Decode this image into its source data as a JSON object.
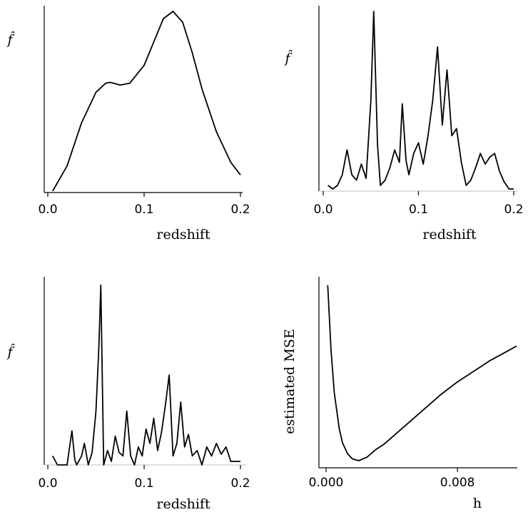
{
  "chart_data": [
    {
      "type": "line",
      "panel": "top-left",
      "xlabel": "redshift",
      "ylabel": "f̂",
      "xticks": [
        "0.0",
        "0.1",
        "0.2"
      ],
      "xlim": [
        0.0,
        0.2
      ],
      "ylim": [
        0,
        1
      ],
      "series": [
        {
          "x": [
            0.005,
            0.02,
            0.035,
            0.05,
            0.06,
            0.065,
            0.075,
            0.085,
            0.1,
            0.11,
            0.12,
            0.13,
            0.14,
            0.15,
            0.16,
            0.175,
            0.19,
            0.2
          ],
          "y": [
            0.0,
            0.14,
            0.38,
            0.55,
            0.6,
            0.605,
            0.59,
            0.6,
            0.7,
            0.83,
            0.96,
            1.0,
            0.94,
            0.77,
            0.57,
            0.33,
            0.16,
            0.09
          ]
        }
      ]
    },
    {
      "type": "line",
      "panel": "top-right",
      "xlabel": "redshift",
      "ylabel": "f̂",
      "xticks": [
        "0.0",
        "0.1",
        "0.2"
      ],
      "xlim": [
        0.0,
        0.2
      ],
      "ylim": [
        0,
        1
      ],
      "series": [
        {
          "x": [
            0.005,
            0.01,
            0.015,
            0.02,
            0.025,
            0.03,
            0.035,
            0.04,
            0.045,
            0.05,
            0.053,
            0.057,
            0.06,
            0.065,
            0.07,
            0.075,
            0.08,
            0.083,
            0.087,
            0.09,
            0.095,
            0.1,
            0.105,
            0.11,
            0.115,
            0.12,
            0.125,
            0.13,
            0.135,
            0.14,
            0.145,
            0.15,
            0.155,
            0.16,
            0.165,
            0.17,
            0.175,
            0.18,
            0.185,
            0.19,
            0.195,
            0.2
          ],
          "y": [
            0.02,
            0.0,
            0.02,
            0.08,
            0.22,
            0.08,
            0.05,
            0.14,
            0.06,
            0.5,
            1.0,
            0.25,
            0.02,
            0.05,
            0.12,
            0.22,
            0.15,
            0.48,
            0.16,
            0.08,
            0.2,
            0.26,
            0.14,
            0.3,
            0.5,
            0.8,
            0.36,
            0.67,
            0.3,
            0.34,
            0.15,
            0.02,
            0.05,
            0.12,
            0.2,
            0.14,
            0.18,
            0.2,
            0.1,
            0.04,
            0.0,
            0.0
          ]
        }
      ]
    },
    {
      "type": "line",
      "panel": "bottom-left",
      "xlabel": "redshift",
      "ylabel": "f̂",
      "xticks": [
        "0.0",
        "0.1",
        "0.2"
      ],
      "xlim": [
        0.0,
        0.2
      ],
      "ylim": [
        0,
        1
      ],
      "series": [
        {
          "x": [
            0.005,
            0.01,
            0.015,
            0.02,
            0.025,
            0.028,
            0.03,
            0.035,
            0.038,
            0.042,
            0.046,
            0.05,
            0.053,
            0.055,
            0.058,
            0.062,
            0.066,
            0.07,
            0.074,
            0.078,
            0.082,
            0.086,
            0.09,
            0.094,
            0.098,
            0.102,
            0.106,
            0.11,
            0.114,
            0.118,
            0.122,
            0.126,
            0.13,
            0.134,
            0.138,
            0.142,
            0.146,
            0.15,
            0.155,
            0.16,
            0.165,
            0.17,
            0.175,
            0.18,
            0.185,
            0.19,
            0.195,
            0.2
          ],
          "y": [
            0.05,
            0.0,
            0.0,
            0.0,
            0.19,
            0.03,
            0.0,
            0.05,
            0.12,
            0.0,
            0.07,
            0.3,
            0.65,
            1.0,
            0.0,
            0.08,
            0.02,
            0.16,
            0.07,
            0.05,
            0.3,
            0.05,
            0.0,
            0.1,
            0.05,
            0.2,
            0.12,
            0.26,
            0.08,
            0.18,
            0.33,
            0.5,
            0.05,
            0.12,
            0.35,
            0.1,
            0.17,
            0.05,
            0.08,
            0.0,
            0.1,
            0.05,
            0.12,
            0.06,
            0.1,
            0.02,
            0.02,
            0.02
          ]
        }
      ]
    },
    {
      "type": "line",
      "panel": "bottom-right",
      "xlabel": "h",
      "ylabel": "estimated MSE",
      "xticks": [
        "0.000",
        "0.008"
      ],
      "xlim": [
        0.0,
        0.0116
      ],
      "ylim": [
        0,
        1
      ],
      "series": [
        {
          "x": [
            0.0001,
            0.0002,
            0.0003,
            0.0005,
            0.0008,
            0.001,
            0.0013,
            0.0016,
            0.002,
            0.0025,
            0.003,
            0.0035,
            0.004,
            0.005,
            0.006,
            0.007,
            0.008,
            0.009,
            0.01,
            0.011,
            0.0116
          ],
          "y": [
            1.0,
            0.82,
            0.64,
            0.4,
            0.2,
            0.12,
            0.06,
            0.03,
            0.02,
            0.04,
            0.08,
            0.11,
            0.15,
            0.23,
            0.31,
            0.39,
            0.46,
            0.52,
            0.58,
            0.63,
            0.66
          ]
        }
      ]
    }
  ]
}
